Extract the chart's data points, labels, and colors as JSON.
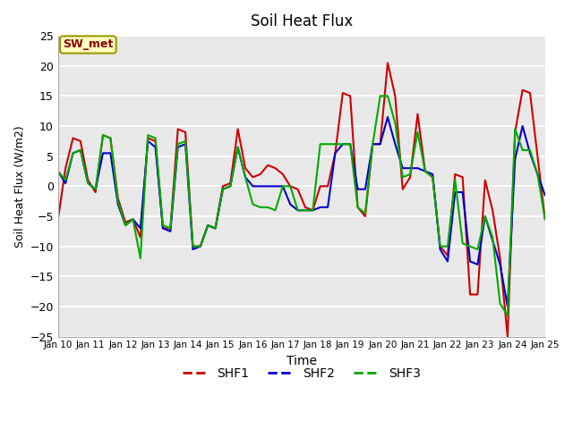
{
  "title": "Soil Heat Flux",
  "xlabel": "Time",
  "ylabel": "Soil Heat Flux (W/m2)",
  "ylim": [
    -25,
    25
  ],
  "yticks": [
    -25,
    -20,
    -15,
    -10,
    -5,
    0,
    5,
    10,
    15,
    20,
    25
  ],
  "xtick_labels": [
    "Jan 10",
    "Jan 11",
    "Jan 12",
    "Jan 13",
    "Jan 14",
    "Jan 15",
    "Jan 16",
    "Jan 17",
    "Jan 18",
    "Jan 19",
    "Jan 20",
    "Jan 21",
    "Jan 22",
    "Jan 23",
    "Jan 24",
    "Jan 25"
  ],
  "annotation_text": "SW_met",
  "annotation_color": "#8B0000",
  "annotation_bg": "#FFFFC0",
  "annotation_border": "#999900",
  "line_colors": {
    "SHF1": "#CC0000",
    "SHF2": "#0000CC",
    "SHF3": "#00AA00"
  },
  "line_width": 1.5,
  "background_color": "#E8E8E8",
  "grid_color": "#FFFFFF",
  "SHF1": [
    -5.5,
    3.0,
    8.0,
    7.5,
    1.0,
    -1.0,
    8.5,
    8.0,
    -2.0,
    -6.0,
    -5.5,
    -8.5,
    8.0,
    7.5,
    -7.0,
    -7.0,
    9.5,
    9.0,
    -10.0,
    -10.0,
    -6.5,
    -7.0,
    0.0,
    0.5,
    9.5,
    3.0,
    1.5,
    2.0,
    3.5,
    3.0,
    2.0,
    0.0,
    -0.5,
    -3.5,
    -4.0,
    0.0,
    0.0,
    5.5,
    15.5,
    15.0,
    -3.5,
    -5.0,
    7.0,
    7.0,
    20.5,
    15.0,
    -0.5,
    1.5,
    12.0,
    2.5,
    1.5,
    -10.0,
    -11.5,
    2.0,
    1.5,
    -18.0,
    -18.0,
    1.0,
    -4.0,
    -12.0,
    -25.0,
    9.0,
    16.0,
    15.5,
    5.0,
    -5.5
  ],
  "SHF2": [
    2.5,
    0.5,
    5.5,
    6.0,
    0.5,
    -0.5,
    5.5,
    5.5,
    -3.0,
    -6.5,
    -5.5,
    -7.0,
    7.5,
    6.5,
    -7.0,
    -7.5,
    6.5,
    7.0,
    -10.5,
    -10.0,
    -6.5,
    -7.0,
    -0.5,
    0.0,
    6.5,
    1.5,
    0.0,
    0.0,
    0.0,
    0.0,
    0.0,
    -3.0,
    -4.0,
    -4.0,
    -4.0,
    -3.5,
    -3.5,
    5.5,
    7.0,
    7.0,
    -0.5,
    -0.5,
    7.0,
    7.0,
    11.5,
    7.0,
    3.0,
    3.0,
    3.0,
    2.5,
    2.0,
    -10.5,
    -12.5,
    -1.0,
    -1.0,
    -12.5,
    -13.0,
    -5.0,
    -9.0,
    -13.0,
    -20.0,
    4.5,
    10.0,
    5.5,
    2.0,
    -1.5
  ],
  "SHF3": [
    2.5,
    1.0,
    5.5,
    6.0,
    0.5,
    -0.5,
    8.5,
    8.0,
    -2.5,
    -6.5,
    -5.5,
    -12.0,
    8.5,
    8.0,
    -6.5,
    -7.0,
    7.0,
    7.5,
    -10.0,
    -10.0,
    -6.5,
    -7.0,
    -0.5,
    0.0,
    6.5,
    1.5,
    -3.0,
    -3.5,
    -3.5,
    -4.0,
    0.0,
    0.0,
    -4.0,
    -4.0,
    -4.0,
    7.0,
    7.0,
    7.0,
    7.0,
    7.0,
    -3.5,
    -4.5,
    7.0,
    15.0,
    15.0,
    10.5,
    1.5,
    2.0,
    9.0,
    2.5,
    1.5,
    -10.0,
    -10.0,
    1.0,
    -9.5,
    -10.0,
    -10.5,
    -5.0,
    -8.5,
    -19.5,
    -21.5,
    9.5,
    6.0,
    6.0,
    2.0,
    -5.5
  ]
}
